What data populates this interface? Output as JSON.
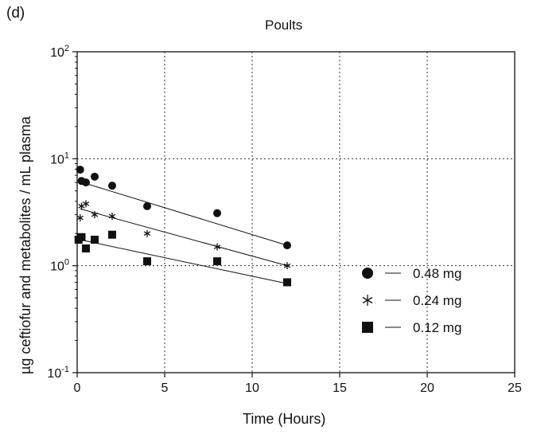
{
  "panel_label": "(d)",
  "chart_data": {
    "type": "scatter",
    "title": "Poults",
    "xlabel": "Time (Hours)",
    "ylabel": "µg ceftiofur and metabolites / mL plasma",
    "xlim": [
      0,
      25
    ],
    "ylim": [
      0.1,
      100
    ],
    "yscale": "log",
    "xticks": [
      "0",
      "5",
      "10",
      "15",
      "20",
      "25"
    ],
    "yticks": [
      {
        "base": "10",
        "exp": "-1"
      },
      {
        "base": "10",
        "exp": "0"
      },
      {
        "base": "10",
        "exp": "1"
      },
      {
        "base": "10",
        "exp": "2"
      }
    ],
    "grid": true,
    "legend_position": "lower-right",
    "series": [
      {
        "name": "0.48 mg",
        "marker": "circle",
        "x": [
          0.17,
          0.25,
          0.5,
          1,
          2,
          4,
          8,
          12
        ],
        "y": [
          7.9,
          6.2,
          6.0,
          6.8,
          5.6,
          3.6,
          3.1,
          1.55
        ],
        "fit": {
          "x": [
            0.17,
            12
          ],
          "y": [
            6.1,
            1.55
          ]
        }
      },
      {
        "name": "0.24 mg",
        "marker": "asterisk",
        "x": [
          0.17,
          0.25,
          0.5,
          1,
          2,
          4,
          8,
          12
        ],
        "y": [
          2.8,
          3.6,
          3.8,
          3.0,
          2.9,
          2.0,
          1.5,
          1.0
        ],
        "fit": {
          "x": [
            0.17,
            12
          ],
          "y": [
            3.4,
            1.0
          ]
        }
      },
      {
        "name": "0.12 mg",
        "marker": "square",
        "x": [
          0.08,
          0.25,
          0.5,
          1,
          2,
          4,
          8,
          12
        ],
        "y": [
          1.75,
          1.85,
          1.45,
          1.75,
          1.95,
          1.1,
          1.1,
          0.7
        ],
        "fit": {
          "x": [
            0.17,
            12
          ],
          "y": [
            1.75,
            0.68
          ]
        }
      }
    ]
  }
}
